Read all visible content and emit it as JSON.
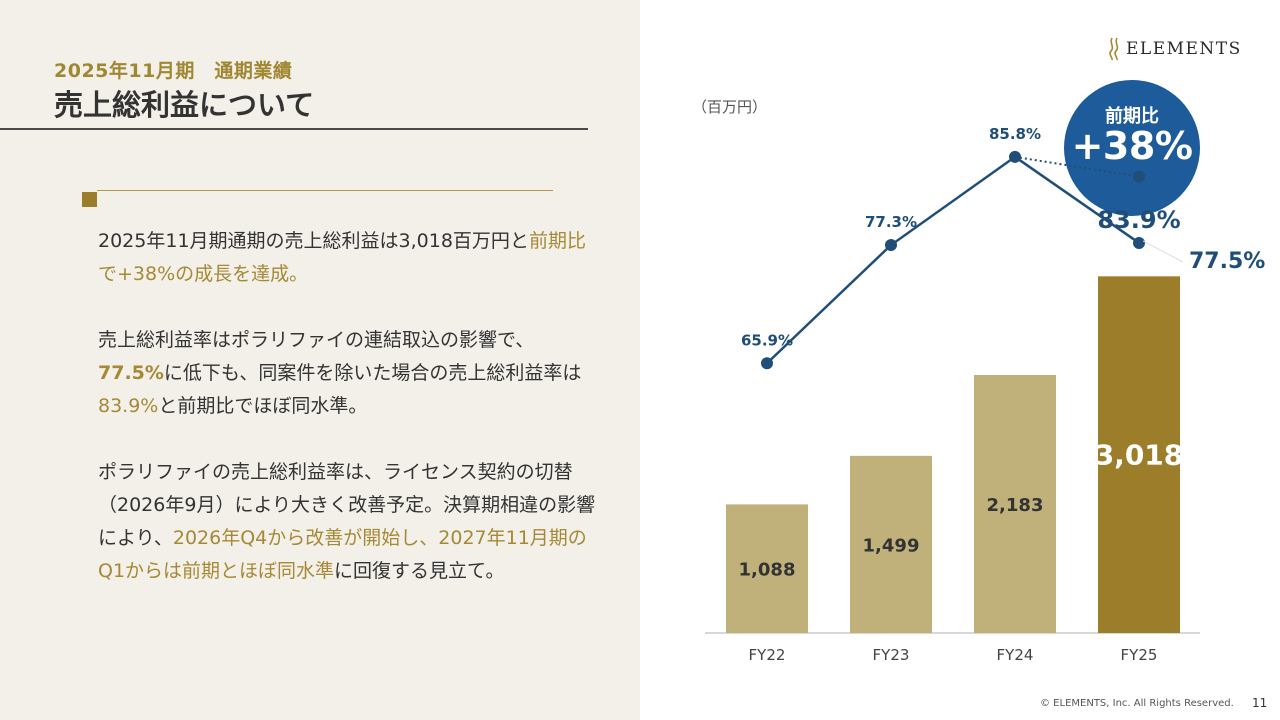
{
  "header": {
    "subtitle": "2025年11月期　通期業績",
    "title": "売上総利益について"
  },
  "body": {
    "p1": [
      {
        "t": "2025年11月期通期の売上総利益は3,018百万円と",
        "s": ""
      },
      {
        "t": "前期比で+38%の成長を達成。",
        "s": "gold"
      }
    ],
    "p2": [
      {
        "t": "売上総利益率はポラリファイの連結取込の影響で、",
        "s": ""
      },
      {
        "t": "77.5%",
        "s": "gold-b"
      },
      {
        "t": "に低下も、同案件を除いた場合の売上総利益率は",
        "s": ""
      },
      {
        "t": "83.9%",
        "s": "gold"
      },
      {
        "t": "と前期比でほぼ同水準。",
        "s": ""
      }
    ],
    "p3": [
      {
        "t": "ポラリファイの売上総利益率は、ライセンス契約の切替（2026年9月）により大きく改善予定。",
        "s": ""
      },
      {
        "t": "決算期相違の影響により、",
        "s": ""
      },
      {
        "t": "2026年Q4から改善が開始し、2027年11月期のQ1からは前期とほぼ同水準",
        "s": "gold"
      },
      {
        "t": "に回復する見立て。",
        "s": ""
      }
    ]
  },
  "logo": {
    "text": "ELEMENTS"
  },
  "badge": {
    "label": "前期比",
    "value": "+38%"
  },
  "footer": {
    "copyright": "© ELEMENTS, Inc. All Rights Reserved.",
    "page": "11"
  },
  "colors": {
    "bar": "#c0b07a",
    "bar_highlight": "#9c7e2a",
    "line": "#1f4e79",
    "accent_gold": "#a68935",
    "badge": "#1e5b9a"
  },
  "chart_data": {
    "type": "bar",
    "unit_label": "（百万円）",
    "categories": [
      "FY22",
      "FY23",
      "FY24",
      "FY25"
    ],
    "values": [
      1088,
      1499,
      2183,
      3018
    ],
    "value_labels": [
      "1,088",
      "1,499",
      "2,183",
      "3,018"
    ],
    "highlight_index": 3,
    "ylim": [
      0,
      3300
    ],
    "line_series": {
      "values": [
        65.9,
        77.3,
        85.8,
        77.5
      ],
      "labels": [
        "65.9%",
        "77.3%",
        "85.8%",
        "77.5%"
      ],
      "ylim": [
        45,
        99
      ]
    },
    "adjusted_point": {
      "index": 3,
      "value": 83.9,
      "label": "83.9%"
    }
  }
}
